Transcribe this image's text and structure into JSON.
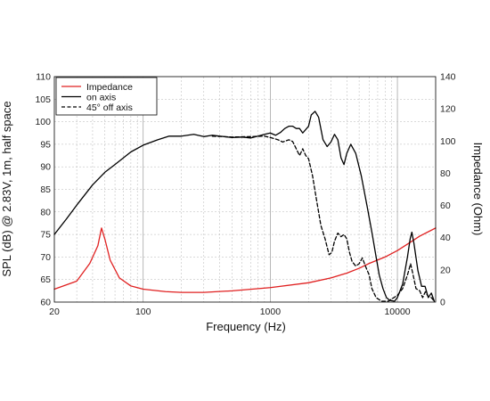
{
  "chart_data": {
    "type": "line",
    "title": "",
    "xlabel": "Frequency (Hz)",
    "ylabel_left": "SPL (dB) @ 2.83V, 1m, half space",
    "ylabel_right": "Impedance (Ohm)",
    "x_scale": "log",
    "xlim": [
      20,
      20000
    ],
    "ylim_left": [
      60,
      110
    ],
    "ylim_right": [
      0,
      140
    ],
    "x_ticks": [
      20,
      100,
      1000,
      10000
    ],
    "y_ticks_left": [
      60,
      65,
      70,
      75,
      80,
      85,
      90,
      95,
      100,
      105,
      110
    ],
    "y_ticks_right": [
      0,
      20,
      40,
      60,
      80,
      100,
      120,
      140
    ],
    "grid": true,
    "legend_position": "top-left",
    "series": [
      {
        "name": "Impedance",
        "axis": "right",
        "color": "#e02020",
        "dash": "solid",
        "points": [
          [
            20,
            8
          ],
          [
            30,
            13
          ],
          [
            38,
            24
          ],
          [
            44,
            35
          ],
          [
            47,
            46
          ],
          [
            50,
            39
          ],
          [
            55,
            26
          ],
          [
            65,
            15
          ],
          [
            80,
            10
          ],
          [
            100,
            8
          ],
          [
            150,
            6.5
          ],
          [
            200,
            6
          ],
          [
            300,
            6
          ],
          [
            500,
            7
          ],
          [
            1000,
            9
          ],
          [
            2000,
            12
          ],
          [
            3000,
            15
          ],
          [
            4000,
            18
          ],
          [
            5000,
            21
          ],
          [
            6000,
            24
          ],
          [
            8000,
            28
          ],
          [
            10000,
            32
          ],
          [
            12000,
            36
          ],
          [
            15000,
            41
          ],
          [
            20000,
            46
          ]
        ]
      },
      {
        "name": "on axis",
        "axis": "left",
        "color": "#000000",
        "dash": "solid",
        "points": [
          [
            20,
            75
          ],
          [
            25,
            78.5
          ],
          [
            30,
            81.5
          ],
          [
            40,
            86
          ],
          [
            50,
            88.8
          ],
          [
            60,
            90.5
          ],
          [
            80,
            93.3
          ],
          [
            100,
            94.8
          ],
          [
            130,
            96
          ],
          [
            160,
            96.8
          ],
          [
            200,
            96.8
          ],
          [
            250,
            97.2
          ],
          [
            300,
            96.7
          ],
          [
            350,
            97
          ],
          [
            400,
            96.8
          ],
          [
            500,
            96.5
          ],
          [
            600,
            96.6
          ],
          [
            700,
            96.4
          ],
          [
            800,
            96.8
          ],
          [
            900,
            97.2
          ],
          [
            1000,
            97.5
          ],
          [
            1100,
            97
          ],
          [
            1200,
            97.6
          ],
          [
            1300,
            98.5
          ],
          [
            1400,
            99
          ],
          [
            1500,
            99
          ],
          [
            1600,
            98.5
          ],
          [
            1700,
            98.5
          ],
          [
            1800,
            97.5
          ],
          [
            2000,
            99
          ],
          [
            2100,
            101.5
          ],
          [
            2250,
            102.3
          ],
          [
            2400,
            101
          ],
          [
            2600,
            96
          ],
          [
            2800,
            94.5
          ],
          [
            3000,
            95.5
          ],
          [
            3200,
            97.2
          ],
          [
            3400,
            96
          ],
          [
            3600,
            92
          ],
          [
            3800,
            90.5
          ],
          [
            4000,
            93
          ],
          [
            4300,
            95
          ],
          [
            4700,
            93
          ],
          [
            5200,
            88
          ],
          [
            5800,
            81
          ],
          [
            6300,
            75.5
          ],
          [
            6800,
            70
          ],
          [
            7200,
            66
          ],
          [
            7700,
            63
          ],
          [
            8200,
            61
          ],
          [
            8700,
            60.4
          ],
          [
            9500,
            60.2
          ],
          [
            10000,
            61
          ],
          [
            11000,
            64
          ],
          [
            12000,
            70
          ],
          [
            12600,
            74
          ],
          [
            13000,
            75.5
          ],
          [
            13500,
            73
          ],
          [
            14500,
            67
          ],
          [
            15500,
            63.5
          ],
          [
            16500,
            63.5
          ],
          [
            17500,
            61
          ],
          [
            18500,
            62
          ],
          [
            19500,
            60.2
          ]
        ]
      },
      {
        "name": "45° off axis",
        "axis": "left",
        "color": "#000000",
        "dash": "dashed",
        "points": [
          [
            350,
            96.8
          ],
          [
            500,
            96.6
          ],
          [
            700,
            96.7
          ],
          [
            900,
            96.8
          ],
          [
            1000,
            96.5
          ],
          [
            1150,
            96
          ],
          [
            1250,
            95.5
          ],
          [
            1400,
            96
          ],
          [
            1500,
            95.6
          ],
          [
            1600,
            94
          ],
          [
            1700,
            92.5
          ],
          [
            1800,
            94
          ],
          [
            1900,
            92.5
          ],
          [
            2000,
            91.8
          ],
          [
            2150,
            88
          ],
          [
            2300,
            83
          ],
          [
            2500,
            77
          ],
          [
            2700,
            74
          ],
          [
            2900,
            70.5
          ],
          [
            3050,
            71
          ],
          [
            3200,
            73.5
          ],
          [
            3400,
            75.3
          ],
          [
            3600,
            74.5
          ],
          [
            3800,
            75
          ],
          [
            4000,
            74
          ],
          [
            4200,
            71
          ],
          [
            4400,
            69
          ],
          [
            4700,
            68
          ],
          [
            5000,
            68.5
          ],
          [
            5300,
            69.8
          ],
          [
            5600,
            68
          ],
          [
            6000,
            66
          ],
          [
            6300,
            63
          ],
          [
            6800,
            61
          ],
          [
            7500,
            60.2
          ],
          [
            8500,
            60.2
          ],
          [
            10000,
            61.5
          ],
          [
            11000,
            63
          ],
          [
            12000,
            66
          ],
          [
            12700,
            68.5
          ],
          [
            13300,
            66
          ],
          [
            14000,
            63
          ],
          [
            15000,
            62.5
          ],
          [
            15800,
            61
          ],
          [
            16600,
            62.3
          ],
          [
            17500,
            61.2
          ],
          [
            18500,
            61
          ],
          [
            19500,
            60.2
          ]
        ]
      }
    ]
  }
}
